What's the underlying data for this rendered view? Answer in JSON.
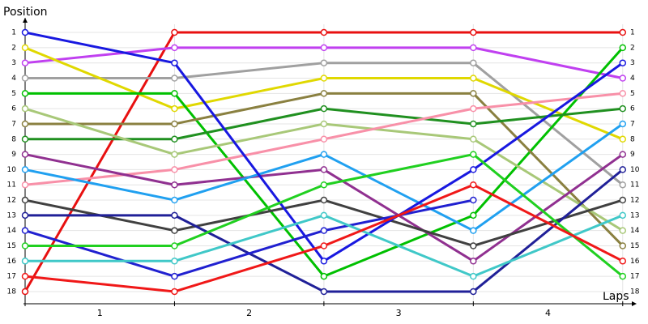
{
  "chart_data": {
    "type": "line",
    "y_label": "Position",
    "x_label": "Laps",
    "x": [
      0,
      1,
      2,
      3,
      4
    ],
    "xlim": [
      0,
      4.05
    ],
    "xticks": [
      {
        "value": 0.5,
        "label": "1"
      },
      {
        "value": 1.5,
        "label": "2"
      },
      {
        "value": 2.5,
        "label": "3"
      },
      {
        "value": 3.5,
        "label": "4"
      }
    ],
    "ylim": [
      18.8,
      0.2
    ],
    "yticks": [
      1,
      2,
      3,
      4,
      5,
      6,
      7,
      8,
      9,
      10,
      11,
      12,
      13,
      14,
      15,
      16,
      17,
      18
    ],
    "grid": true,
    "series": [
      {
        "color": "#e81010",
        "values": [
          18,
          1,
          1,
          1,
          1
        ]
      },
      {
        "color": "#c040f0",
        "values": [
          3,
          2,
          2,
          2,
          4
        ]
      },
      {
        "color": "#a0a0a0",
        "values": [
          4,
          4,
          3,
          3,
          11
        ]
      },
      {
        "color": "#e0d800",
        "values": [
          2,
          6,
          4,
          4,
          8
        ]
      },
      {
        "color": "#00c000",
        "values": [
          5,
          5,
          17,
          13,
          2
        ]
      },
      {
        "color": "#8a8040",
        "values": [
          7,
          7,
          5,
          5,
          15
        ]
      },
      {
        "color": "#209020",
        "values": [
          8,
          8,
          6,
          7,
          6
        ]
      },
      {
        "color": "#a8c878",
        "values": [
          6,
          9,
          7,
          8,
          14
        ]
      },
      {
        "color": "#f890a8",
        "values": [
          11,
          10,
          8,
          6,
          5
        ]
      },
      {
        "color": "#903090",
        "values": [
          9,
          11,
          10,
          16,
          9
        ]
      },
      {
        "color": "#20a0f0",
        "values": [
          10,
          12,
          9,
          14,
          7
        ]
      },
      {
        "color": "#404040",
        "values": [
          12,
          14,
          12,
          15,
          12
        ]
      },
      {
        "color": "#202098",
        "values": [
          13,
          13,
          18,
          18,
          10
        ]
      },
      {
        "color": "#1818e0",
        "values": [
          1,
          3,
          16,
          10,
          3
        ]
      },
      {
        "color": "#2020d0",
        "values": [
          14,
          17,
          14,
          12,
          null
        ]
      },
      {
        "color": "#20d020",
        "values": [
          15,
          15,
          11,
          9,
          17
        ]
      },
      {
        "color": "#40c8c8",
        "values": [
          16,
          16,
          13,
          17,
          13
        ]
      },
      {
        "color": "#f01818",
        "values": [
          17,
          18,
          15,
          11,
          16
        ]
      }
    ]
  }
}
